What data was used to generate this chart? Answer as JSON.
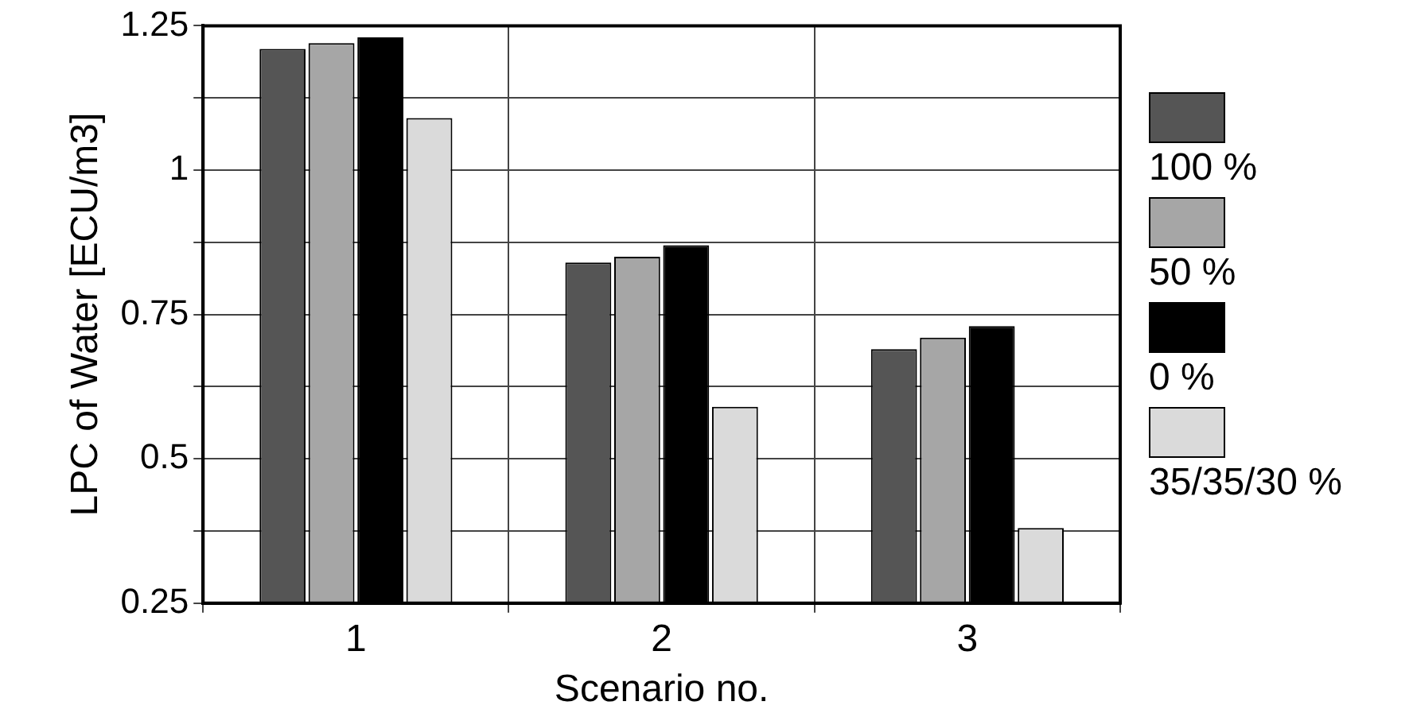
{
  "chart_data": {
    "type": "bar",
    "xlabel": "Scenario no.",
    "ylabel": "LPC of Water [ECU/m3]",
    "categories": [
      "1",
      "2",
      "3"
    ],
    "series": [
      {
        "name": "100 %",
        "color": "#555555",
        "values": [
          1.21,
          0.84,
          0.69
        ]
      },
      {
        "name": "50 %",
        "color": "#a6a6a6",
        "values": [
          1.22,
          0.85,
          0.71
        ]
      },
      {
        "name": "0 %",
        "color": "#000000",
        "values": [
          1.23,
          0.87,
          0.73
        ]
      },
      {
        "name": "35/35/30 %",
        "color": "#dadada",
        "values": [
          1.09,
          0.59,
          0.38
        ]
      }
    ],
    "ylim": [
      0.25,
      1.25
    ],
    "yticks": [
      0.25,
      {
        "value": 0.375,
        "label": null
      },
      0.5,
      {
        "value": 0.625,
        "label": null
      },
      0.75,
      {
        "value": 0.875,
        "label": null
      },
      1,
      {
        "value": 1.125,
        "label": null
      },
      1.25
    ],
    "grid": true,
    "legend": "right"
  }
}
